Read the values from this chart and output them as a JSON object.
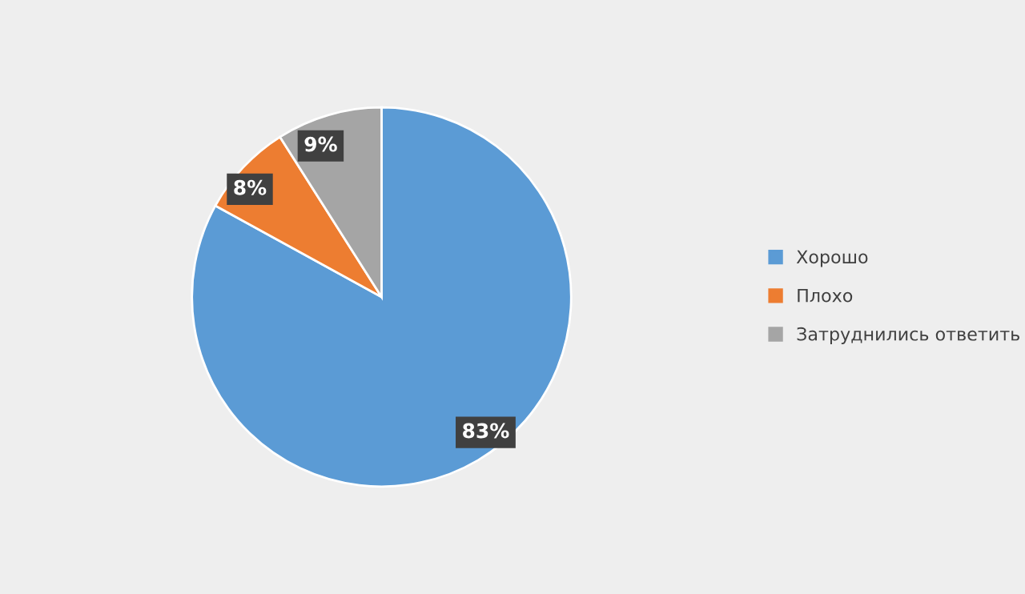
{
  "chart_data": {
    "type": "pie",
    "categories": [
      "Хорошо",
      "Плохо",
      "Затруднились ответить"
    ],
    "values": [
      83,
      8,
      9
    ],
    "colors": [
      "#5b9bd5",
      "#ed7d31",
      "#a5a5a5"
    ],
    "value_labels": [
      "83%",
      "8%",
      "9%"
    ],
    "legend": "right"
  }
}
